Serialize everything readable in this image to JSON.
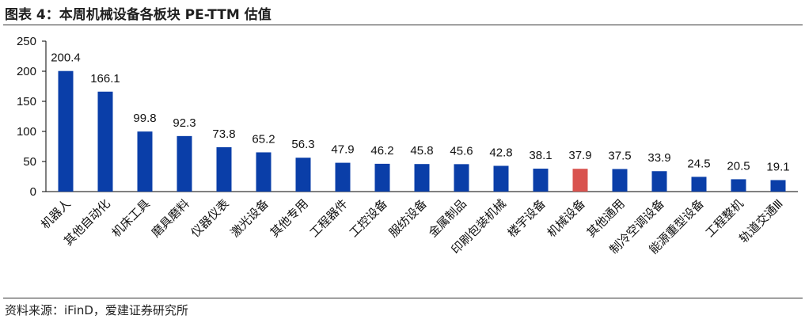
{
  "header": {
    "title": "图表 4：本周机械设备各板块 PE-TTM 估值"
  },
  "footer": {
    "source": "资料来源：iFinD，爱建证券研究所"
  },
  "chart_data": {
    "type": "bar",
    "title": "图表 4：本周机械设备各板块 PE-TTM 估值",
    "xlabel": "",
    "ylabel": "",
    "ylim": [
      0,
      250
    ],
    "yticks": [
      0,
      50,
      100,
      150,
      200,
      250
    ],
    "grid": false,
    "legend": "none",
    "categories": [
      "机器人",
      "其他自动化",
      "机床工具",
      "磨具磨料",
      "仪器仪表",
      "激光设备",
      "其他专用",
      "工程器件",
      "工控设备",
      "服纺设备",
      "金属制品",
      "印刷包装机械",
      "楼宇设备",
      "机械设备",
      "其他通用",
      "制冷空调设备",
      "能源重型设备",
      "工程整机",
      "轨道交通Ⅲ"
    ],
    "values": [
      200.4,
      166.1,
      99.8,
      92.3,
      73.8,
      65.2,
      56.3,
      47.9,
      46.2,
      45.8,
      45.6,
      42.8,
      38.1,
      37.9,
      37.5,
      33.9,
      24.5,
      20.5,
      19.1
    ],
    "value_labels": [
      "200.4",
      "166.1",
      "99.8",
      "92.3",
      "73.8",
      "65.2",
      "56.3",
      "47.9",
      "46.2",
      "45.8",
      "45.6",
      "42.8",
      "38.1",
      "37.9",
      "37.5",
      "33.9",
      "24.5",
      "20.5",
      "19.1"
    ],
    "highlight_category": "机械设备",
    "colors": {
      "bar": "#0a3ea8",
      "highlight": "#d9534f",
      "axis": "#000000"
    }
  }
}
